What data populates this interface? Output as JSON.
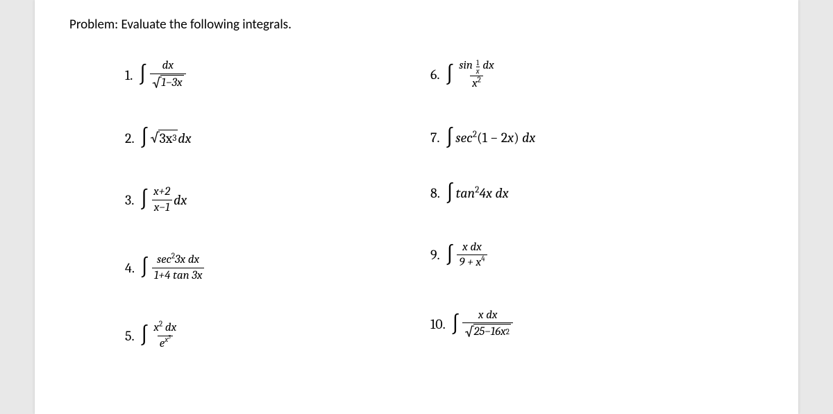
{
  "title": "Problem: Evaluate the following integrals.",
  "items": {
    "n1": "1.",
    "n2": "2.",
    "n3": "3.",
    "n4": "4.",
    "n5": "5.",
    "n6": "6.",
    "n7": "7.",
    "n8": "8.",
    "n9": "9.",
    "n10": "10."
  },
  "expr": {
    "dx": "dx",
    "one": "1",
    "x": "x",
    "item1_num": "dx",
    "item1_den_rad": "1−3x",
    "item2_rad": "3x",
    "item2_exp": "3",
    "item2_tail": " dx",
    "item3_num": "x+2",
    "item3_den": "x−1",
    "item3_tail": " dx",
    "item4_num_a": "sec",
    "item4_num_exp": "2",
    "item4_num_b": "3x dx",
    "item4_den": "1+4 tan 3x",
    "item5_num_a": "x",
    "item5_num_exp": "2",
    "item5_num_b": " dx",
    "item5_den_a": "e",
    "item5_den_exp": "x",
    "item5_den_exp2": "3",
    "item6_num_a": "sin",
    "item6_num_b": "dx",
    "item6_den_a": "x",
    "item6_den_exp": "2",
    "item7_a": "sec",
    "item7_exp": "2",
    "item7_b": "(1 − 2x) dx",
    "item8_a": "tan",
    "item8_exp": "2",
    "item8_b": "4x dx",
    "item9_num": "x dx",
    "item9_den_a": "9 + x",
    "item9_den_exp": "4",
    "item10_num": "x dx",
    "item10_den_rad_a": "25−16x",
    "item10_den_rad_exp": "2"
  },
  "style": {
    "page_bg": "#ffffff",
    "outer_bg": "#e8e8e8",
    "text_color": "#000000",
    "title_fontsize": 19,
    "item_fontsize": 20,
    "frac_fontsize": 17,
    "font_family_title": "Calibri",
    "font_family_math": "Cambria Math"
  }
}
